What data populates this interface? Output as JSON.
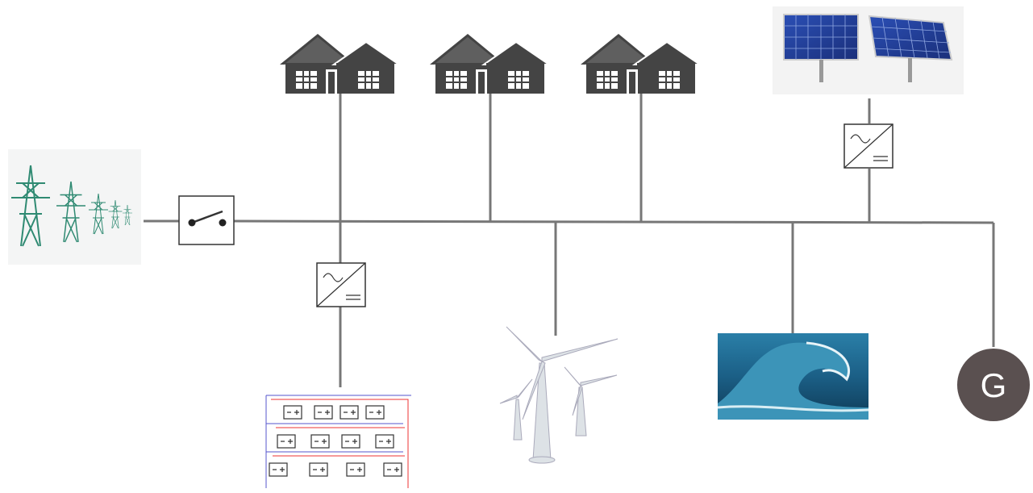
{
  "generator": {
    "label": "G"
  }
}
